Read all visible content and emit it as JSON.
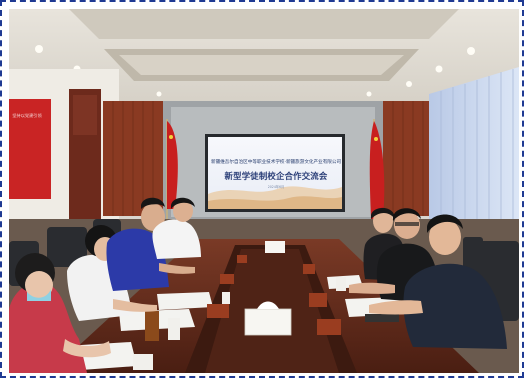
{
  "screen": {
    "line1": "新疆维吾尔自治区中等职业技术学校·新疆旅游文化产业有限公司",
    "title": "新型学徒制校企合作交流会",
    "date": "2024年6月"
  },
  "wall_sign": {
    "text": "坚持以党建引领"
  },
  "colors": {
    "frame": "#1f3a93",
    "screen_bg": "#f4f6fb",
    "flag": "#c81f1f",
    "table": "#6b2e1e",
    "blind": "#c9d6ee"
  }
}
